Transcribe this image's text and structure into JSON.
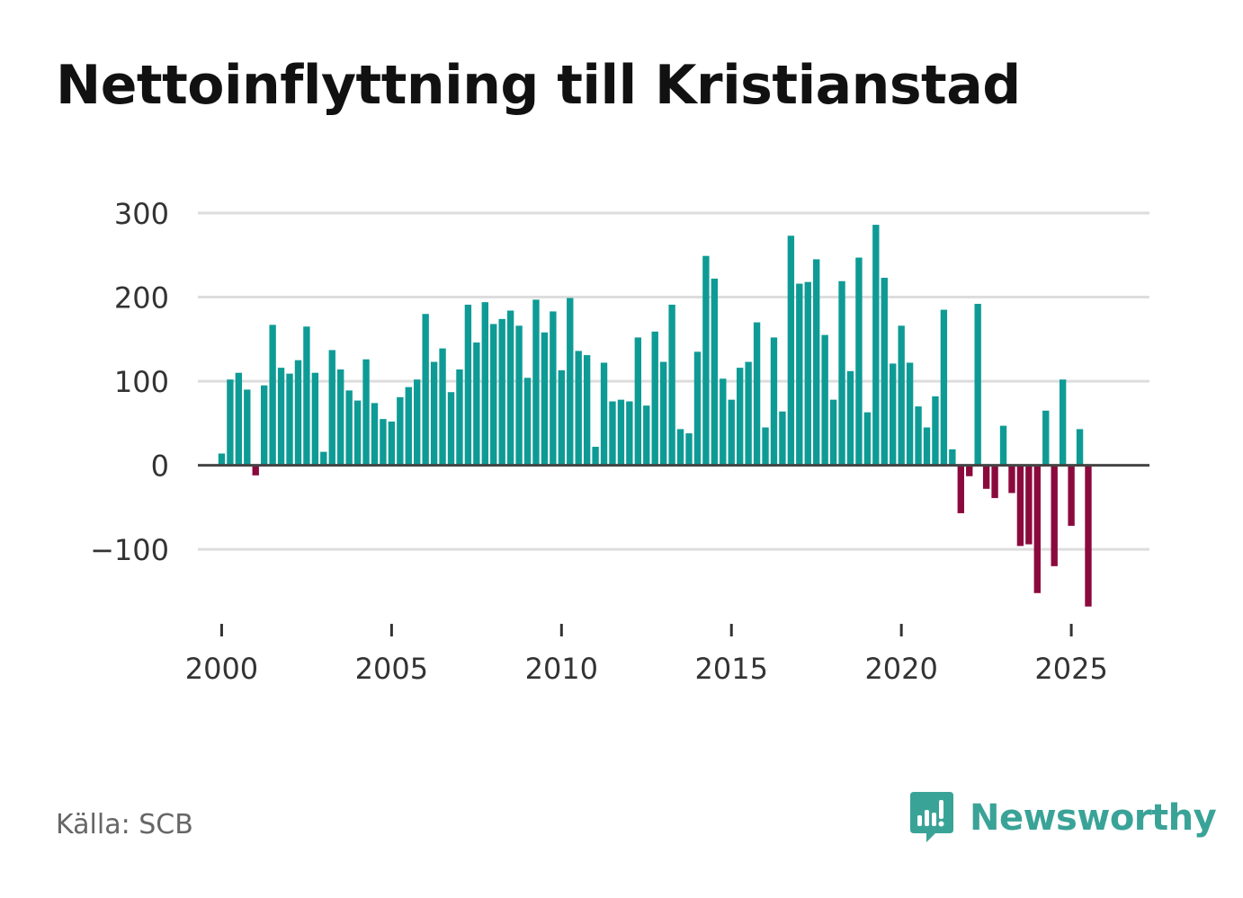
{
  "title": "Nettoinflyttning till Kristianstad",
  "source": "Källa: SCB",
  "brand": {
    "name": "Newsworthy",
    "icon": "newsworthy-logo-icon"
  },
  "colors": {
    "positive": "#0e9b95",
    "negative": "#8b0a3e",
    "grid": "#dddddd",
    "zero_line": "#444444",
    "brand": "#3aa398"
  },
  "chart_data": {
    "type": "bar",
    "title": "Nettoinflyttning till Kristianstad",
    "xlabel": "",
    "ylabel": "",
    "ylim": [
      -195,
      300
    ],
    "xlim": [
      1999.3,
      2027.3
    ],
    "yticks": [
      300,
      200,
      100,
      0,
      -100
    ],
    "ytick_labels": [
      "300",
      "200",
      "100",
      "0",
      "−100"
    ],
    "xticks": [
      2000,
      2005,
      2010,
      2015,
      2020,
      2025
    ],
    "xtick_labels": [
      "2000",
      "2005",
      "2010",
      "2015",
      "2020",
      "2025"
    ],
    "frequency": "quarterly",
    "start": 2000,
    "values": [
      14,
      102,
      110,
      90,
      -12,
      95,
      167,
      116,
      109,
      125,
      165,
      110,
      16,
      137,
      114,
      89,
      77,
      126,
      74,
      55,
      52,
      81,
      93,
      102,
      180,
      123,
      139,
      87,
      114,
      191,
      146,
      194,
      168,
      174,
      184,
      166,
      104,
      197,
      158,
      183,
      113,
      199,
      136,
      131,
      22,
      122,
      76,
      78,
      76,
      152,
      71,
      159,
      123,
      191,
      43,
      38,
      135,
      249,
      222,
      103,
      78,
      116,
      123,
      170,
      45,
      152,
      64,
      273,
      216,
      218,
      245,
      155,
      78,
      219,
      112,
      247,
      63,
      286,
      223,
      121,
      166,
      122,
      70,
      45,
      82,
      185,
      19,
      -57,
      -13,
      192,
      -28,
      -39,
      47,
      -33,
      -96,
      -94,
      -152,
      65,
      -120,
      102,
      -72,
      43,
      -168
    ]
  }
}
